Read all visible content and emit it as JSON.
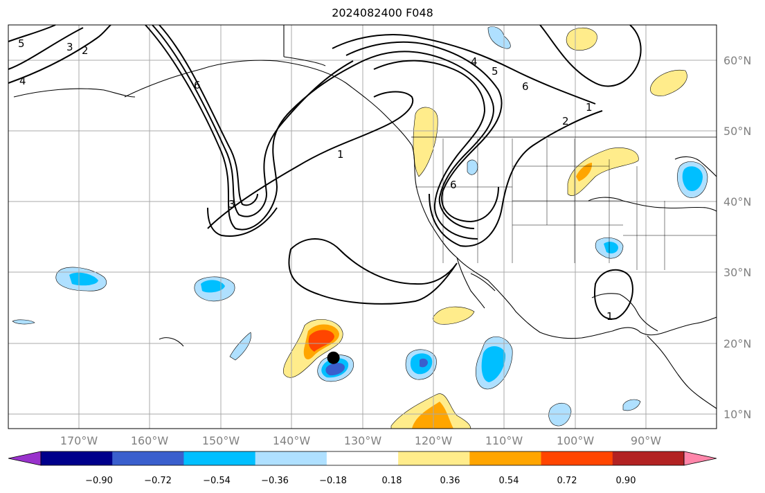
{
  "title": "2024082400 F048",
  "map": {
    "projection": "PlateCarree",
    "lon_range": [
      -180,
      -80
    ],
    "lat_range": [
      8,
      65
    ],
    "lon_labels": [
      "170°W",
      "160°W",
      "150°W",
      "140°W",
      "130°W",
      "120°W",
      "110°W",
      "100°W",
      "90°W"
    ],
    "lat_labels": [
      "60°N",
      "50°N",
      "40°N",
      "30°N",
      "20°N",
      "10°N"
    ],
    "gridlines": true,
    "marker": {
      "name": "storm-center-marker",
      "lon": -134.1,
      "lat": 18.0
    }
  },
  "contour_labels": [
    "5",
    "3",
    "2",
    "4",
    "6",
    "1",
    "3",
    "4",
    "5",
    "6",
    "2",
    "1",
    "6",
    "1"
  ],
  "colorbar": {
    "ticks": [
      "−0.90",
      "−0.72",
      "−0.54",
      "−0.36",
      "−0.18",
      "0.18",
      "0.36",
      "0.54",
      "0.72",
      "0.90"
    ],
    "colors": [
      "#9932cc",
      "#00008b",
      "#3a5fcd",
      "#00bfff",
      "#afe0ff",
      "#ffffff",
      "#ffec8b",
      "#ffa500",
      "#ff4500",
      "#b22222",
      "#ff86aa"
    ],
    "extend": "both"
  }
}
